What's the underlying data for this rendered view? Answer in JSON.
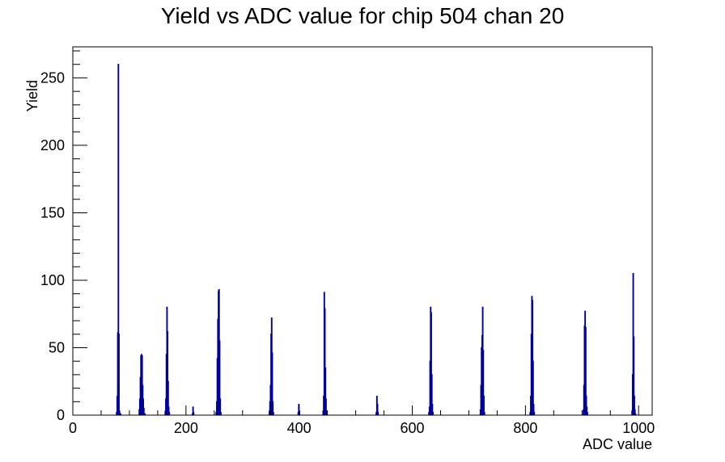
{
  "chart_data": {
    "type": "bar",
    "title": "Yield vs ADC value for chip 504 chan 20",
    "xlabel": "ADC value",
    "ylabel": "Yield",
    "xlim": [
      0,
      1024
    ],
    "ylim": [
      0,
      273
    ],
    "x_ticks": [
      0,
      200,
      400,
      600,
      800,
      1000
    ],
    "y_ticks": [
      0,
      50,
      100,
      150,
      200,
      250
    ],
    "grid": false,
    "legend": "none",
    "line_color": "#000099",
    "series": [
      {
        "values": [
          [
            77,
            2
          ],
          [
            78,
            14
          ],
          [
            79,
            61
          ],
          [
            80,
            260
          ],
          [
            81,
            60
          ],
          [
            82,
            3
          ],
          [
            84,
            1
          ],
          [
            117,
            4
          ],
          [
            118,
            12
          ],
          [
            119,
            28
          ],
          [
            120,
            44
          ],
          [
            121,
            45
          ],
          [
            122,
            44
          ],
          [
            123,
            22
          ],
          [
            124,
            12
          ],
          [
            125,
            5
          ],
          [
            127,
            1
          ],
          [
            163,
            3
          ],
          [
            164,
            12
          ],
          [
            165,
            45
          ],
          [
            166,
            80
          ],
          [
            167,
            62
          ],
          [
            168,
            25
          ],
          [
            169,
            6
          ],
          [
            170,
            2
          ],
          [
            211,
            1
          ],
          [
            212,
            6
          ],
          [
            213,
            2
          ],
          [
            253,
            2
          ],
          [
            254,
            10
          ],
          [
            255,
            42
          ],
          [
            256,
            71
          ],
          [
            257,
            92
          ],
          [
            258,
            93
          ],
          [
            259,
            55
          ],
          [
            260,
            12
          ],
          [
            261,
            2
          ],
          [
            347,
            3
          ],
          [
            348,
            10
          ],
          [
            349,
            22
          ],
          [
            350,
            60
          ],
          [
            351,
            72
          ],
          [
            352,
            46
          ],
          [
            353,
            10
          ],
          [
            354,
            2
          ],
          [
            398,
            2
          ],
          [
            399,
            8
          ],
          [
            400,
            3
          ],
          [
            442,
            3
          ],
          [
            443,
            14
          ],
          [
            444,
            91
          ],
          [
            445,
            79
          ],
          [
            446,
            35
          ],
          [
            447,
            12
          ],
          [
            448,
            3
          ],
          [
            536,
            2
          ],
          [
            537,
            14
          ],
          [
            538,
            8
          ],
          [
            539,
            2
          ],
          [
            629,
            2
          ],
          [
            630,
            6
          ],
          [
            631,
            40
          ],
          [
            632,
            80
          ],
          [
            633,
            76
          ],
          [
            634,
            30
          ],
          [
            635,
            8
          ],
          [
            636,
            2
          ],
          [
            720,
            4
          ],
          [
            721,
            22
          ],
          [
            722,
            50
          ],
          [
            723,
            59
          ],
          [
            724,
            80
          ],
          [
            725,
            48
          ],
          [
            726,
            14
          ],
          [
            727,
            2
          ],
          [
            808,
            2
          ],
          [
            809,
            14
          ],
          [
            810,
            60
          ],
          [
            811,
            88
          ],
          [
            812,
            85
          ],
          [
            813,
            40
          ],
          [
            814,
            8
          ],
          [
            815,
            2
          ],
          [
            902,
            4
          ],
          [
            903,
            22
          ],
          [
            904,
            66
          ],
          [
            905,
            77
          ],
          [
            906,
            65
          ],
          [
            907,
            14
          ],
          [
            908,
            6
          ],
          [
            909,
            2
          ],
          [
            988,
            3
          ],
          [
            989,
            30
          ],
          [
            990,
            105
          ],
          [
            991,
            58
          ],
          [
            992,
            14
          ],
          [
            993,
            4
          ],
          [
            994,
            1
          ]
        ]
      }
    ]
  }
}
